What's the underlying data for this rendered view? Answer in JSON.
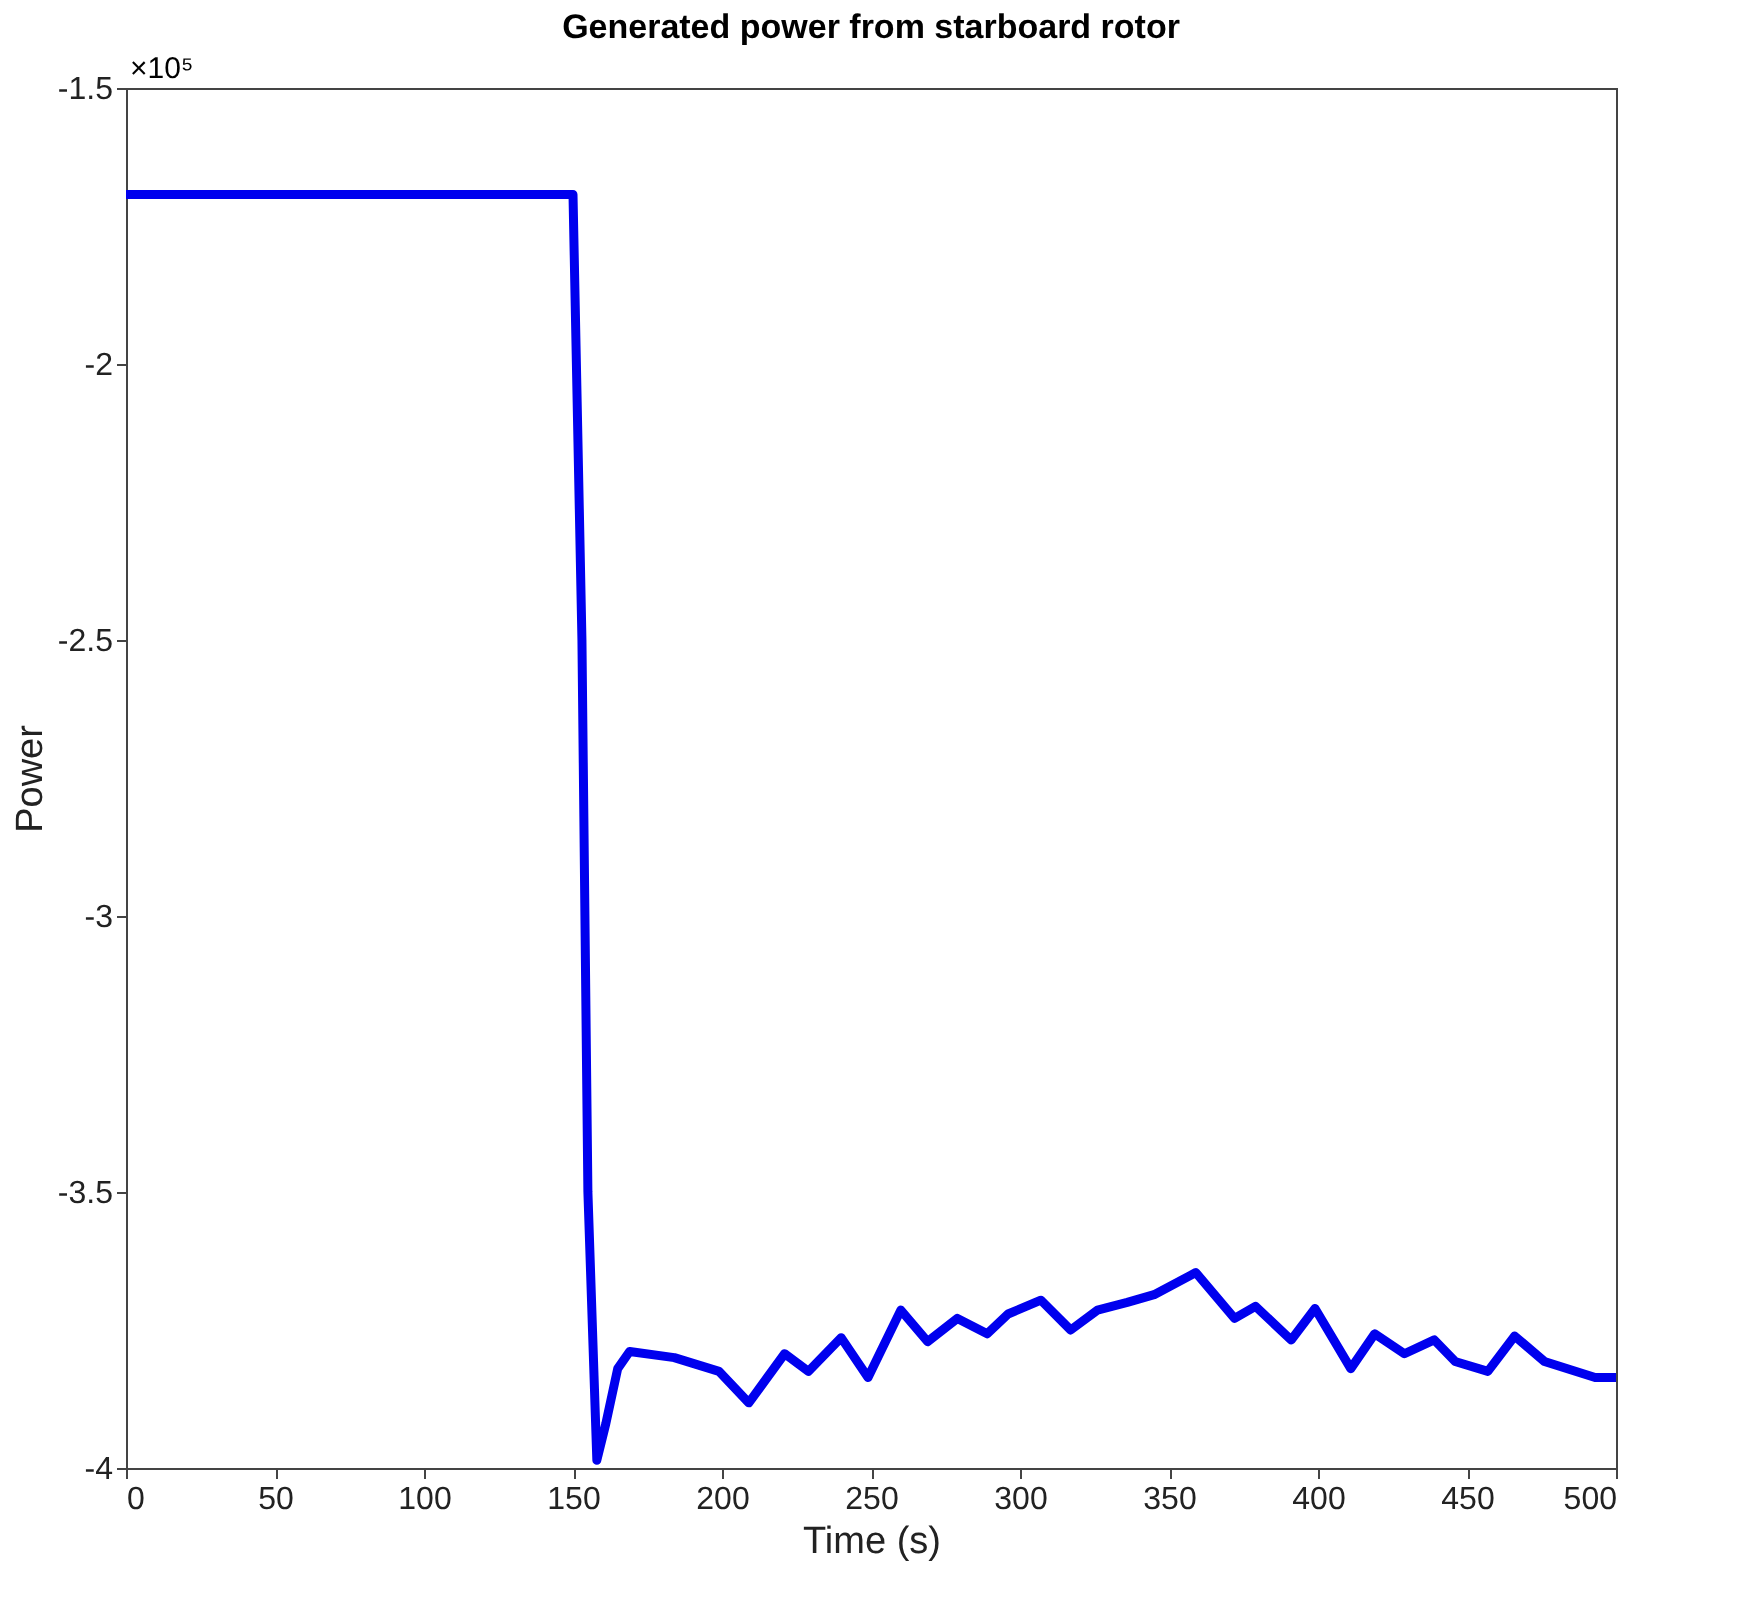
{
  "chart_data": {
    "type": "line",
    "title": "Generated power from starboard rotor",
    "xlabel": "Time (s)",
    "ylabel": "Power",
    "annotations": [
      "×10⁵"
    ],
    "x": [
      0,
      150,
      153,
      155,
      158,
      161,
      165,
      169,
      184,
      199,
      209,
      221,
      229,
      240,
      249,
      260,
      269,
      279,
      289,
      296,
      307,
      317,
      326,
      336,
      345,
      359,
      372,
      379,
      391,
      399,
      411,
      419,
      429,
      439,
      446,
      457,
      466,
      476,
      493,
      500
    ],
    "series": [
      {
        "color": "#0000ee",
        "values": [
          -1.693,
          -1.693,
          -2.5,
          -3.5,
          -3.986,
          -3.92,
          -3.82,
          -3.789,
          -3.8,
          -3.825,
          -3.882,
          -3.793,
          -3.825,
          -3.764,
          -3.836,
          -3.714,
          -3.771,
          -3.729,
          -3.757,
          -3.721,
          -3.696,
          -3.75,
          -3.714,
          -3.7,
          -3.686,
          -3.646,
          -3.729,
          -3.707,
          -3.768,
          -3.711,
          -3.82,
          -3.757,
          -3.793,
          -3.768,
          -3.807,
          -3.825,
          -3.761,
          -3.807,
          -3.836,
          -3.836
        ]
      }
    ],
    "xlim": [
      0,
      500
    ],
    "xticks": [
      0,
      50,
      100,
      150,
      200,
      250,
      300,
      350,
      400,
      450,
      500
    ],
    "ylim": [
      -4,
      -1.5
    ],
    "yticks": [
      -4,
      -3.5,
      -3,
      -2.5,
      -2,
      -1.5
    ],
    "grid": false,
    "marker": "none",
    "line_style": "solid"
  }
}
